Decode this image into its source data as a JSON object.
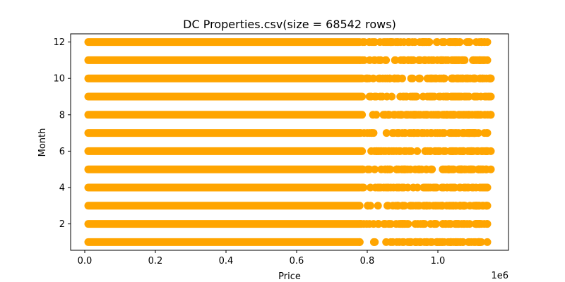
{
  "chart_data": {
    "type": "scatter",
    "title": "DC Properties.csv(size = 68542 rows)",
    "xlabel": "Price",
    "ylabel": "Month",
    "x_offset_label": "1e6",
    "xlim": [
      -0.04,
      1.2
    ],
    "ylim": [
      0.55,
      12.45
    ],
    "x_ticks": [
      0.0,
      0.2,
      0.4,
      0.6,
      0.8,
      1.0
    ],
    "x_tick_labels": [
      "0.0",
      "0.2",
      "0.4",
      "0.6",
      "0.8",
      "1.0"
    ],
    "y_ticks": [
      2,
      4,
      6,
      8,
      10,
      12
    ],
    "y_tick_labels": [
      "2",
      "4",
      "6",
      "8",
      "10",
      "12"
    ],
    "grid": false,
    "legend": "none",
    "color": "#FFA500",
    "series": [
      {
        "x_units": "millions (×1e6)",
        "bands": [
          {
            "y": 1,
            "x_min": 0.01,
            "x_max": 1.14
          },
          {
            "y": 2,
            "x_min": 0.01,
            "x_max": 1.14
          },
          {
            "y": 3,
            "x_min": 0.01,
            "x_max": 1.14
          },
          {
            "y": 4,
            "x_min": 0.01,
            "x_max": 1.14
          },
          {
            "y": 5,
            "x_min": 0.01,
            "x_max": 1.15
          },
          {
            "y": 6,
            "x_min": 0.01,
            "x_max": 1.15
          },
          {
            "y": 7,
            "x_min": 0.01,
            "x_max": 1.14
          },
          {
            "y": 8,
            "x_min": 0.01,
            "x_max": 1.15
          },
          {
            "y": 9,
            "x_min": 0.01,
            "x_max": 1.15
          },
          {
            "y": 10,
            "x_min": 0.01,
            "x_max": 1.15
          },
          {
            "y": 11,
            "x_min": 0.01,
            "x_max": 1.14
          },
          {
            "y": 12,
            "x_min": 0.01,
            "x_max": 1.14
          }
        ]
      }
    ]
  }
}
